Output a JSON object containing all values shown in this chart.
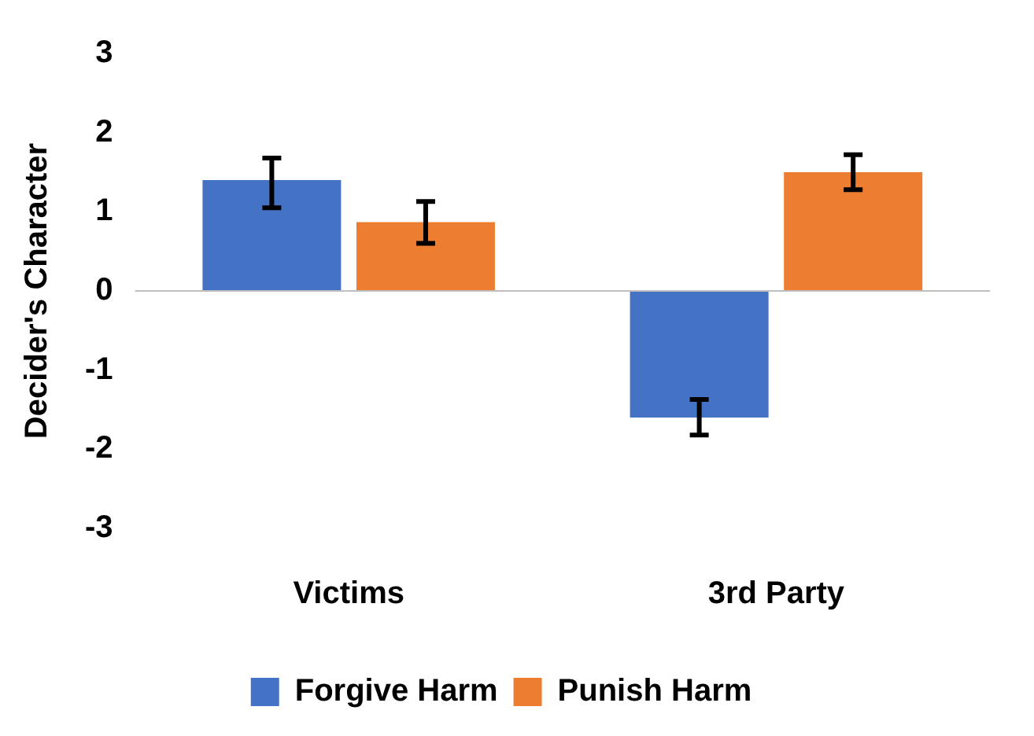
{
  "chart_data": {
    "type": "bar",
    "ylabel": "Decider's Character",
    "categories": [
      "Victims",
      "3rd Party"
    ],
    "series": [
      {
        "name": "Forgive Harm",
        "color": "#4472c4",
        "values": [
          1.4,
          -1.6
        ],
        "errors": [
          [
            1.05,
            1.68
          ],
          [
            -1.82,
            -1.37
          ]
        ]
      },
      {
        "name": "Punish Harm",
        "color": "#ed7d31",
        "values": [
          0.87,
          1.5
        ],
        "errors": [
          [
            0.6,
            1.13
          ],
          [
            1.28,
            1.72
          ]
        ]
      }
    ],
    "ylim": [
      -3,
      3
    ],
    "yticks": [
      -3,
      -2,
      -1,
      0,
      1,
      2,
      3
    ],
    "grid": false,
    "legend": "bottom",
    "ref_lines": [
      {
        "axis": "y",
        "value": 0,
        "color": "#bfbfbf"
      }
    ]
  }
}
